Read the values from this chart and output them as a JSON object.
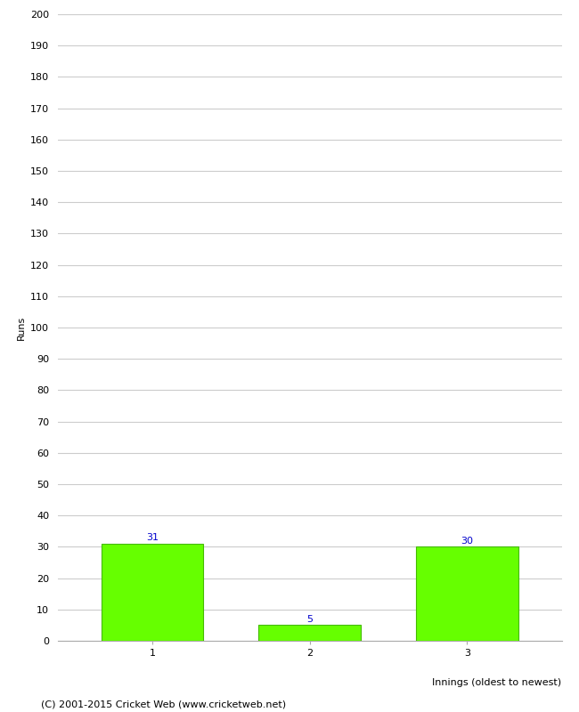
{
  "categories": [
    "1",
    "2",
    "3"
  ],
  "values": [
    31,
    5,
    30
  ],
  "bar_color": "#66ff00",
  "bar_edge_color": "#44bb00",
  "xlabel": "Innings (oldest to newest)",
  "ylabel": "Runs",
  "ylim": [
    0,
    200
  ],
  "yticks": [
    0,
    10,
    20,
    30,
    40,
    50,
    60,
    70,
    80,
    90,
    100,
    110,
    120,
    130,
    140,
    150,
    160,
    170,
    180,
    190,
    200
  ],
  "label_color": "#0000cc",
  "label_fontsize": 8,
  "axis_fontsize": 8,
  "ylabel_fontsize": 8,
  "xlabel_fontsize": 8,
  "footer_text": "(C) 2001-2015 Cricket Web (www.cricketweb.net)",
  "footer_fontsize": 8,
  "background_color": "#ffffff",
  "grid_color": "#cccccc"
}
